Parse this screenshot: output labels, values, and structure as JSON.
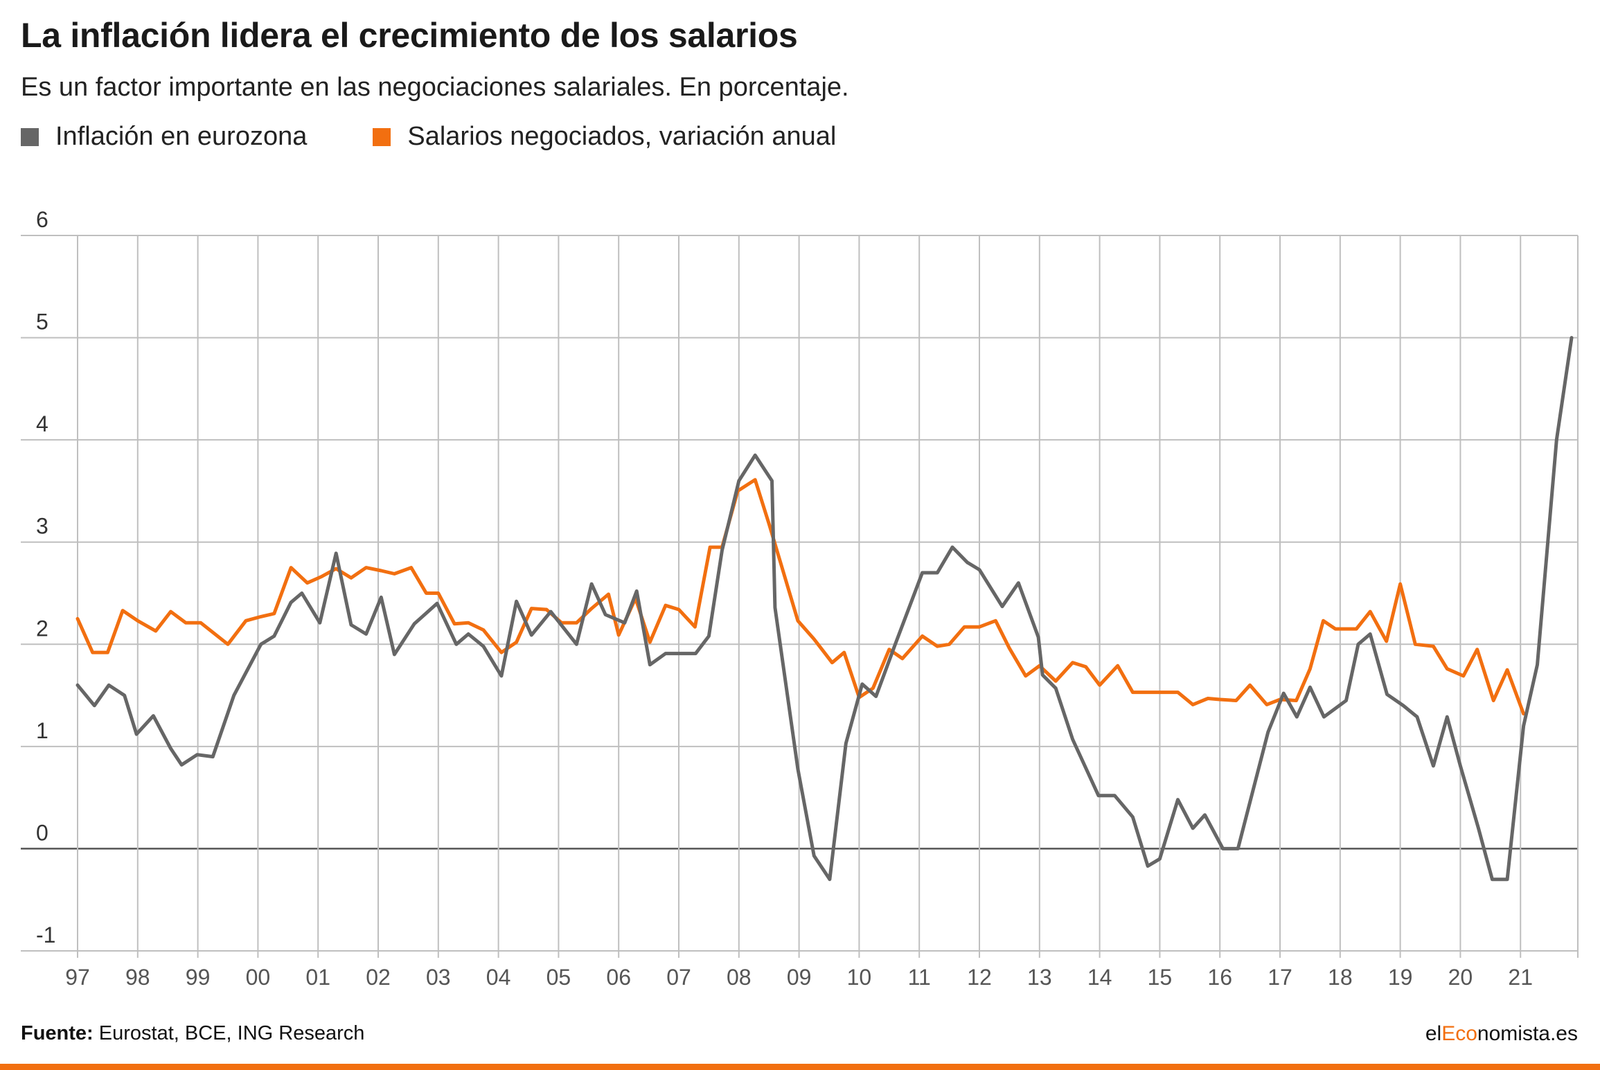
{
  "title": "La inflación lidera el crecimiento de los salarios",
  "subtitle": "Es un factor importante en las negociaciones salariales. En porcentaje.",
  "colors": {
    "inflation": "#666666",
    "wages": "#f26f10",
    "grid": "#bfbfbf",
    "zero": "#555555",
    "tick": "#555555"
  },
  "chart_data": {
    "type": "line",
    "legend_position": "top-left",
    "grid": true,
    "ylim": [
      -1,
      6
    ],
    "y_ticks": [
      "6",
      "5",
      "4",
      "3",
      "2",
      "1",
      "0",
      "-1"
    ],
    "x_tick_labels": [
      "97",
      "98",
      "99",
      "00",
      "01",
      "02",
      "03",
      "04",
      "05",
      "06",
      "07",
      "08",
      "09",
      "10",
      "11",
      "12",
      "13",
      "14",
      "15",
      "16",
      "17",
      "18",
      "19",
      "20",
      "21"
    ],
    "x_range": [
      1997.0,
      2021.85
    ],
    "series": [
      {
        "name": "Inflación en eurozona",
        "color": "#666666",
        "points": [
          [
            1997.0,
            1.6
          ],
          [
            1997.28,
            1.4
          ],
          [
            1997.52,
            1.6
          ],
          [
            1997.78,
            1.5
          ],
          [
            1997.98,
            1.12
          ],
          [
            1998.26,
            1.3
          ],
          [
            1998.55,
            0.98
          ],
          [
            1998.73,
            0.82
          ],
          [
            1998.99,
            0.92
          ],
          [
            1999.25,
            0.9
          ],
          [
            1999.6,
            1.5
          ],
          [
            2000.05,
            2.0
          ],
          [
            2000.27,
            2.08
          ],
          [
            2000.55,
            2.41
          ],
          [
            2000.73,
            2.5
          ],
          [
            2001.03,
            2.21
          ],
          [
            2001.3,
            2.89
          ],
          [
            2001.55,
            2.19
          ],
          [
            2001.8,
            2.1
          ],
          [
            2002.05,
            2.46
          ],
          [
            2002.27,
            1.9
          ],
          [
            2002.6,
            2.2
          ],
          [
            2002.98,
            2.4
          ],
          [
            2003.3,
            2.0
          ],
          [
            2003.5,
            2.1
          ],
          [
            2003.75,
            1.98
          ],
          [
            2004.05,
            1.69
          ],
          [
            2004.3,
            2.42
          ],
          [
            2004.55,
            2.09
          ],
          [
            2004.87,
            2.32
          ],
          [
            2005.3,
            2.0
          ],
          [
            2005.55,
            2.59
          ],
          [
            2005.78,
            2.29
          ],
          [
            2006.1,
            2.21
          ],
          [
            2006.3,
            2.52
          ],
          [
            2006.52,
            1.8
          ],
          [
            2006.78,
            1.91
          ],
          [
            2007.05,
            1.91
          ],
          [
            2007.28,
            1.91
          ],
          [
            2007.5,
            2.08
          ],
          [
            2007.72,
            2.92
          ],
          [
            2008.0,
            3.6
          ],
          [
            2008.27,
            3.85
          ],
          [
            2008.55,
            3.6
          ],
          [
            2008.6,
            2.36
          ],
          [
            2008.98,
            0.78
          ],
          [
            2009.25,
            -0.07
          ],
          [
            2009.51,
            -0.3
          ],
          [
            2009.78,
            1.03
          ],
          [
            2010.05,
            1.61
          ],
          [
            2010.28,
            1.49
          ],
          [
            2010.6,
            2.0
          ],
          [
            2011.05,
            2.7
          ],
          [
            2011.3,
            2.7
          ],
          [
            2011.55,
            2.95
          ],
          [
            2011.8,
            2.8
          ],
          [
            2012.0,
            2.73
          ],
          [
            2012.38,
            2.37
          ],
          [
            2012.65,
            2.6
          ],
          [
            2012.98,
            2.07
          ],
          [
            2013.05,
            1.7
          ],
          [
            2013.27,
            1.57
          ],
          [
            2013.55,
            1.07
          ],
          [
            2013.98,
            0.52
          ],
          [
            2014.25,
            0.52
          ],
          [
            2014.55,
            0.31
          ],
          [
            2014.8,
            -0.17
          ],
          [
            2015.0,
            -0.1
          ],
          [
            2015.3,
            0.48
          ],
          [
            2015.55,
            0.2
          ],
          [
            2015.75,
            0.33
          ],
          [
            2016.05,
            0.0
          ],
          [
            2016.3,
            0.0
          ],
          [
            2016.8,
            1.14
          ],
          [
            2017.06,
            1.52
          ],
          [
            2017.28,
            1.29
          ],
          [
            2017.5,
            1.58
          ],
          [
            2017.73,
            1.29
          ],
          [
            2018.1,
            1.45
          ],
          [
            2018.3,
            2.0
          ],
          [
            2018.5,
            2.1
          ],
          [
            2018.78,
            1.51
          ],
          [
            2019.05,
            1.4
          ],
          [
            2019.28,
            1.29
          ],
          [
            2019.55,
            0.81
          ],
          [
            2019.78,
            1.29
          ],
          [
            2020.0,
            0.81
          ],
          [
            2020.3,
            0.2
          ],
          [
            2020.53,
            -0.3
          ],
          [
            2020.78,
            -0.3
          ],
          [
            2021.05,
            1.2
          ],
          [
            2021.28,
            1.8
          ],
          [
            2021.6,
            4.0
          ],
          [
            2021.85,
            5.0
          ]
        ]
      },
      {
        "name": "Salarios negociados, variación anual",
        "color": "#f26f10",
        "points": [
          [
            1997.0,
            2.25
          ],
          [
            1997.25,
            1.92
          ],
          [
            1997.5,
            1.92
          ],
          [
            1997.75,
            2.33
          ],
          [
            1998.0,
            2.23
          ],
          [
            1998.3,
            2.13
          ],
          [
            1998.55,
            2.32
          ],
          [
            1998.8,
            2.21
          ],
          [
            1999.05,
            2.21
          ],
          [
            1999.5,
            2.0
          ],
          [
            1999.8,
            2.23
          ],
          [
            2000.05,
            2.27
          ],
          [
            2000.27,
            2.3
          ],
          [
            2000.55,
            2.75
          ],
          [
            2000.82,
            2.6
          ],
          [
            2001.05,
            2.66
          ],
          [
            2001.3,
            2.74
          ],
          [
            2001.55,
            2.65
          ],
          [
            2001.8,
            2.75
          ],
          [
            2002.05,
            2.72
          ],
          [
            2002.27,
            2.69
          ],
          [
            2002.55,
            2.75
          ],
          [
            2002.8,
            2.5
          ],
          [
            2003.0,
            2.5
          ],
          [
            2003.27,
            2.2
          ],
          [
            2003.5,
            2.21
          ],
          [
            2003.75,
            2.14
          ],
          [
            2004.05,
            1.92
          ],
          [
            2004.3,
            2.02
          ],
          [
            2004.55,
            2.35
          ],
          [
            2004.8,
            2.34
          ],
          [
            2005.05,
            2.21
          ],
          [
            2005.3,
            2.21
          ],
          [
            2005.55,
            2.35
          ],
          [
            2005.83,
            2.49
          ],
          [
            2006.0,
            2.09
          ],
          [
            2006.28,
            2.45
          ],
          [
            2006.52,
            2.02
          ],
          [
            2006.78,
            2.38
          ],
          [
            2007.0,
            2.34
          ],
          [
            2007.27,
            2.17
          ],
          [
            2007.52,
            2.95
          ],
          [
            2007.72,
            2.95
          ],
          [
            2007.98,
            3.5
          ],
          [
            2008.27,
            3.61
          ],
          [
            2008.5,
            3.18
          ],
          [
            2008.98,
            2.23
          ],
          [
            2009.25,
            2.05
          ],
          [
            2009.55,
            1.82
          ],
          [
            2009.75,
            1.92
          ],
          [
            2010.0,
            1.48
          ],
          [
            2010.23,
            1.57
          ],
          [
            2010.5,
            1.95
          ],
          [
            2010.72,
            1.86
          ],
          [
            2011.05,
            2.08
          ],
          [
            2011.3,
            1.98
          ],
          [
            2011.5,
            2.0
          ],
          [
            2011.75,
            2.17
          ],
          [
            2012.0,
            2.17
          ],
          [
            2012.27,
            2.23
          ],
          [
            2012.5,
            1.96
          ],
          [
            2012.77,
            1.69
          ],
          [
            2013.0,
            1.79
          ],
          [
            2013.27,
            1.64
          ],
          [
            2013.55,
            1.82
          ],
          [
            2013.77,
            1.78
          ],
          [
            2014.0,
            1.6
          ],
          [
            2014.3,
            1.79
          ],
          [
            2014.55,
            1.53
          ],
          [
            2014.8,
            1.53
          ],
          [
            2015.05,
            1.53
          ],
          [
            2015.3,
            1.53
          ],
          [
            2015.55,
            1.41
          ],
          [
            2015.8,
            1.47
          ],
          [
            2016.0,
            1.46
          ],
          [
            2016.27,
            1.45
          ],
          [
            2016.5,
            1.6
          ],
          [
            2016.78,
            1.41
          ],
          [
            2017.0,
            1.46
          ],
          [
            2017.27,
            1.45
          ],
          [
            2017.5,
            1.76
          ],
          [
            2017.72,
            2.23
          ],
          [
            2017.92,
            2.15
          ],
          [
            2018.27,
            2.15
          ],
          [
            2018.5,
            2.32
          ],
          [
            2018.77,
            2.03
          ],
          [
            2019.0,
            2.59
          ],
          [
            2019.25,
            2.0
          ],
          [
            2019.55,
            1.98
          ],
          [
            2019.78,
            1.76
          ],
          [
            2020.05,
            1.69
          ],
          [
            2020.28,
            1.95
          ],
          [
            2020.55,
            1.45
          ],
          [
            2020.78,
            1.75
          ],
          [
            2021.05,
            1.32
          ]
        ]
      }
    ]
  },
  "footer": {
    "source_label": "Fuente:",
    "source_text": " Eurostat, BCE, ING Research"
  },
  "brand": {
    "prefix": "el",
    "accent": "Eco",
    "suffix": "nomista.es"
  }
}
